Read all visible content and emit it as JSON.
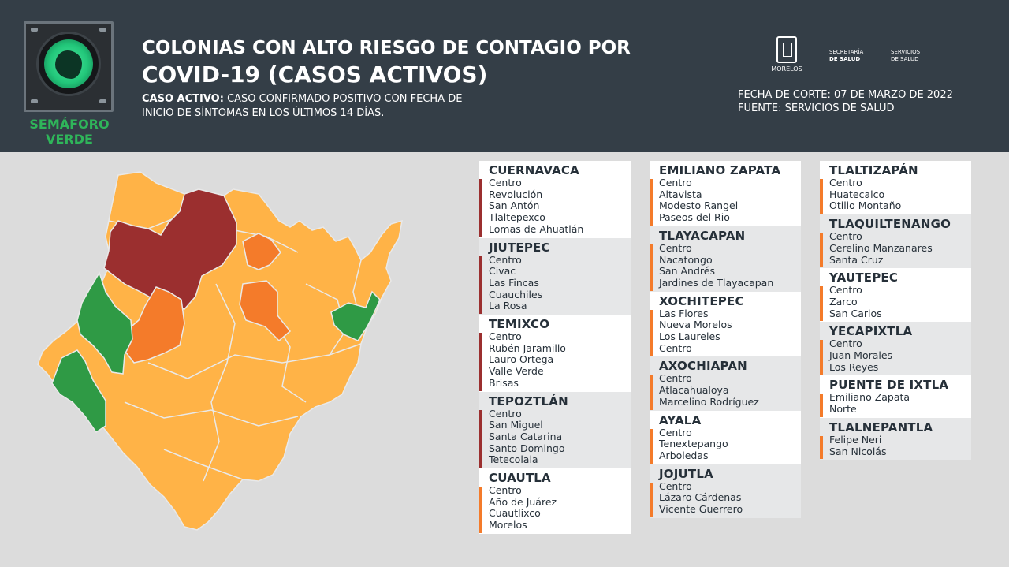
{
  "header": {
    "semaforo_line1": "SEMÁFORO",
    "semaforo_line2": "VERDE",
    "title_line1": "COLONIAS CON ALTO RIESGO DE CONTAGIO POR",
    "title_line2": "COVID-19 (CASOS ACTIVOS)",
    "definition_label": "CASO ACTIVO:",
    "definition_line1": " CASO CONFIRMADO POSITIVO CON FECHA DE",
    "definition_line2": "INICIO DE SÍNTOMAS EN LOS ÚLTIMOS 14 DÍAS.",
    "logo_morelos": "MORELOS",
    "logo_secretaria_1": "SECRETARÍA",
    "logo_secretaria_2": "DE SALUD",
    "logo_servicios_1": "SERVICIOS",
    "logo_servicios_2": "DE SALUD",
    "fecha": "FECHA DE CORTE: 07 DE MARZO DE 2022",
    "fuente": "FUENTE: SERVICIOS DE SALUD"
  },
  "colors": {
    "header_bg": "#343e47",
    "high_risk": "#9b2f2f",
    "medium_risk": "#f47b2a",
    "low_risk": "#ffb347",
    "green": "#2f9a45"
  },
  "columns": [
    [
      {
        "name": "CUERNAVACA",
        "bar": "red",
        "bg": "white",
        "items": [
          "Centro",
          "Revolución",
          "San Antón",
          "Tlaltepexco",
          "Lomas de Ahuatlán"
        ]
      },
      {
        "name": "JIUTEPEC",
        "bar": "red",
        "bg": "gray",
        "items": [
          "Centro",
          "Civac",
          "Las Fincas",
          "Cuauchiles",
          "La Rosa"
        ]
      },
      {
        "name": "TEMIXCO",
        "bar": "red",
        "bg": "white",
        "items": [
          "Centro",
          "Rubén Jaramillo",
          "Lauro Ortega",
          "Valle Verde",
          "Brisas"
        ]
      },
      {
        "name": "TEPOZTLÁN",
        "bar": "red",
        "bg": "gray",
        "items": [
          "Centro",
          "San Miguel",
          "Santa Catarina",
          "Santo Domingo",
          "Tetecolala"
        ]
      },
      {
        "name": "CUAUTLA",
        "bar": "orange",
        "bg": "white",
        "items": [
          "Centro",
          "Año de Juárez",
          "Cuautlixco",
          "Morelos"
        ]
      }
    ],
    [
      {
        "name": "EMILIANO ZAPATA",
        "bar": "orange",
        "bg": "white",
        "items": [
          "Centro",
          "Altavista",
          "Modesto Rangel",
          "Paseos del Rio"
        ]
      },
      {
        "name": "TLAYACAPAN",
        "bar": "orange",
        "bg": "gray",
        "items": [
          "Centro",
          "Nacatongo",
          "San Andrés",
          "Jardines de Tlayacapan"
        ]
      },
      {
        "name": "XOCHITEPEC",
        "bar": "orange",
        "bg": "white",
        "items": [
          "Las Flores",
          "Nueva Morelos",
          "Los Laureles",
          "Centro"
        ]
      },
      {
        "name": "AXOCHIAPAN",
        "bar": "orange",
        "bg": "gray",
        "items": [
          "Centro",
          "Atlacahualoya",
          "Marcelino Rodríguez"
        ]
      },
      {
        "name": "AYALA",
        "bar": "orange",
        "bg": "white",
        "items": [
          "Centro",
          "Tenextepango",
          "Arboledas"
        ]
      },
      {
        "name": "JOJUTLA",
        "bar": "orange",
        "bg": "gray",
        "items": [
          "Centro",
          "Lázaro Cárdenas",
          "Vicente Guerrero"
        ]
      }
    ],
    [
      {
        "name": "TLALTIZAPÁN",
        "bar": "orange",
        "bg": "white",
        "items": [
          "Centro",
          "Huatecalco",
          "Otilio Montaño"
        ]
      },
      {
        "name": "TLAQUILTENANGO",
        "bar": "orange",
        "bg": "gray",
        "items": [
          "Centro",
          "Cerelino Manzanares",
          "Santa Cruz"
        ]
      },
      {
        "name": "YAUTEPEC",
        "bar": "orange",
        "bg": "white",
        "items": [
          "Centro",
          "Zarco",
          "San Carlos"
        ]
      },
      {
        "name": "YECAPIXTLA",
        "bar": "orange",
        "bg": "gray",
        "items": [
          "Centro",
          "Juan Morales",
          "Los Reyes"
        ]
      },
      {
        "name": "PUENTE DE IXTLA",
        "bar": "orange",
        "bg": "white",
        "items": [
          "Emiliano Zapata",
          "Norte"
        ]
      },
      {
        "name": "TLALNEPANTLA",
        "bar": "orange",
        "bg": "gray",
        "items": [
          "Felipe Neri",
          "San Nicolás"
        ]
      }
    ]
  ]
}
